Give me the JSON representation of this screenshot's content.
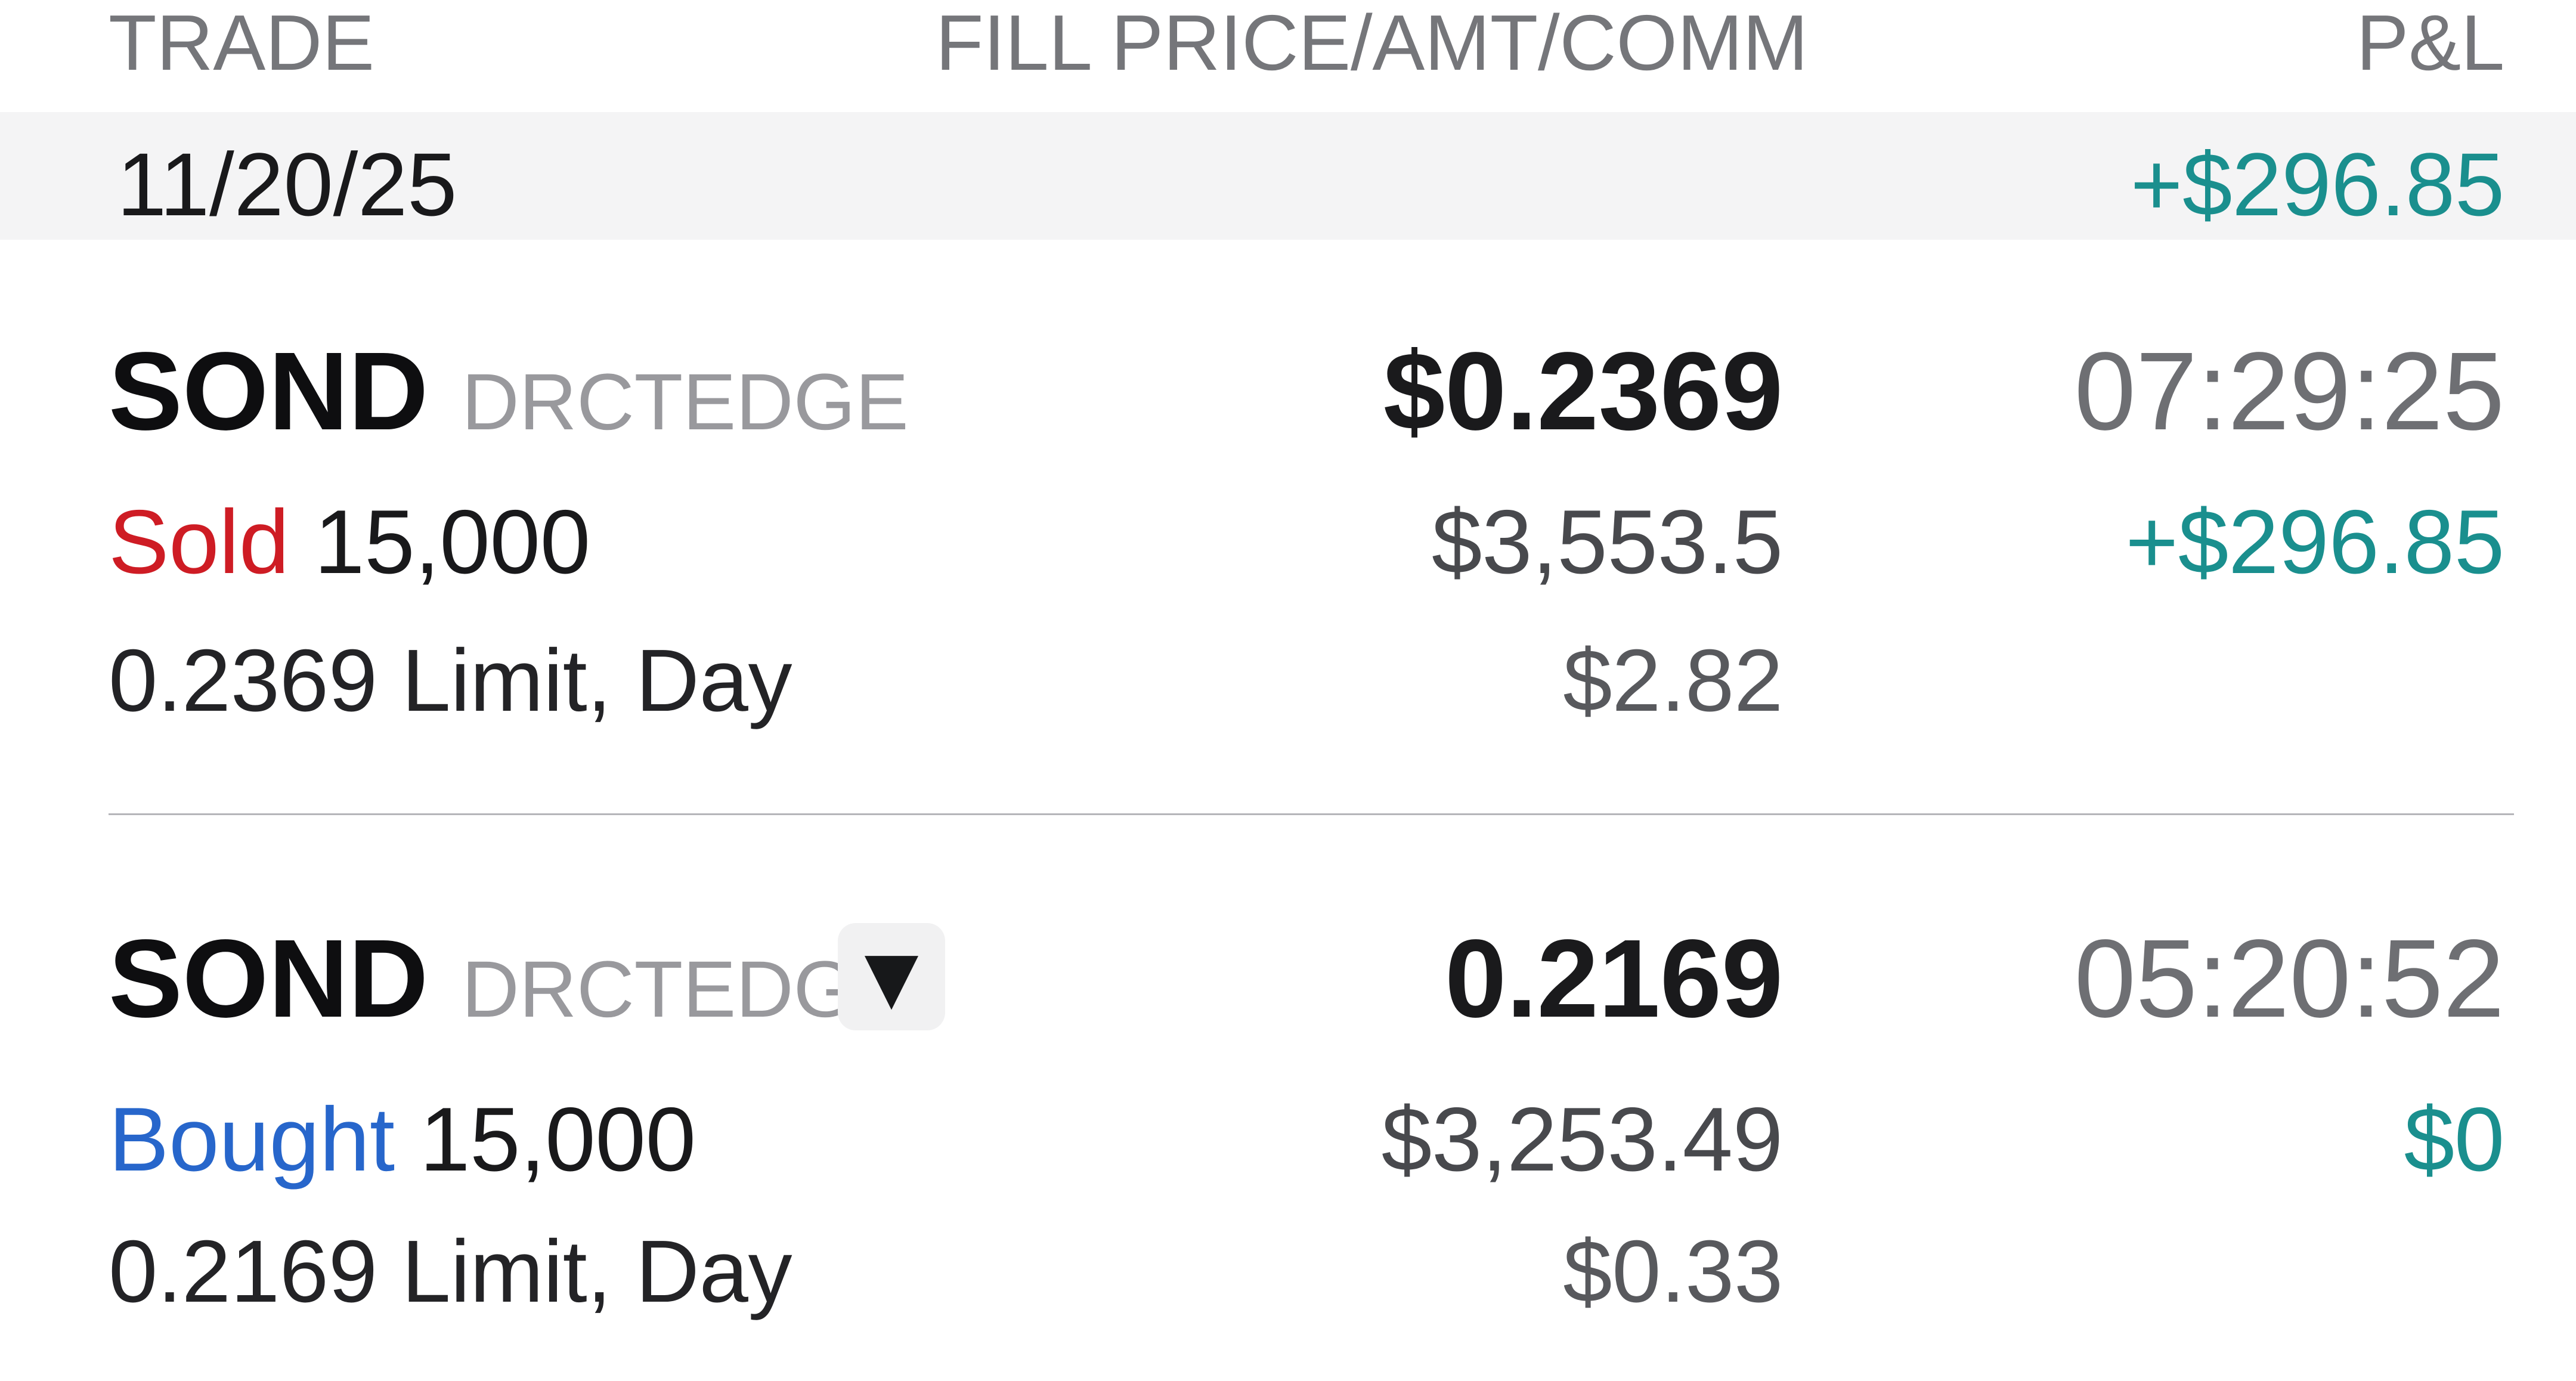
{
  "header": {
    "col_trade": "TRADE",
    "col_fill": "FILL PRICE/AMT/COMM",
    "col_pnl": "P&L"
  },
  "date_group": {
    "date": "11/20/25",
    "pnl": "+$296.85"
  },
  "trades": [
    {
      "symbol": "SOND",
      "venue": "DRCTEDGE",
      "fill_price": "$0.2369",
      "time": "07:29:25",
      "side": "Sold",
      "side_color": "#ce1c24",
      "quantity": "15,000",
      "fill_amount": "$3,553.5",
      "pnl": "+$296.85",
      "order": "0.2369 Limit, Day",
      "commission": "$2.82"
    },
    {
      "symbol": "SOND",
      "venue": "DRCTEDGE",
      "fill_price": "0.2169",
      "time": "05:20:52",
      "side": "Bought",
      "side_color": "#2766cb",
      "quantity": "15,000",
      "fill_amount": "$3,253.49",
      "pnl": "$0",
      "order": "0.2169 Limit, Day",
      "commission": "$0.33"
    }
  ],
  "icons": {
    "dropdown": "▼"
  },
  "colors": {
    "positive_pnl": "#1a8f8e",
    "sell_red": "#ce1c24",
    "buy_blue": "#2766cb",
    "header_gray": "#75767a",
    "venue_gray": "#99999d",
    "time_gray": "#6e6f73",
    "band_background": "#f4f4f5",
    "divider": "#b5b5b9"
  }
}
